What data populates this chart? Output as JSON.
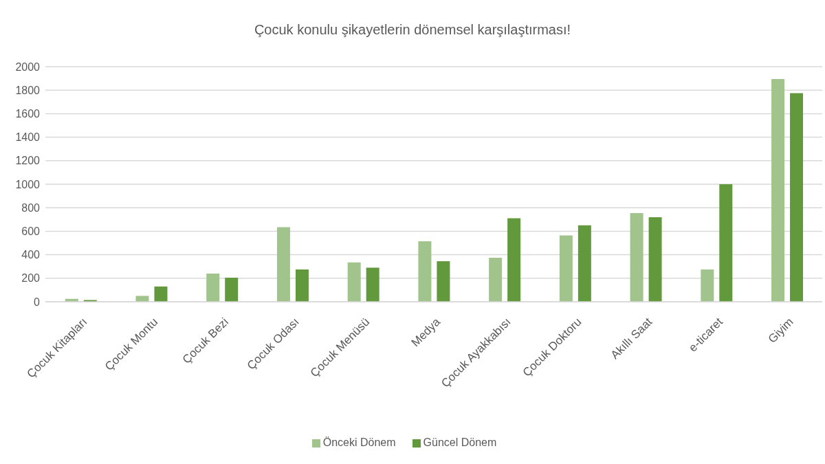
{
  "chart_data": {
    "type": "bar",
    "title": "Çocuk konulu şikayetlerin dönemsel karşılaştırması!",
    "categories": [
      "Çocuk Kitapları",
      "Çocuk Montu",
      "Çocuk Bezi",
      "Çocuk Odası",
      "Çocuk Menüsü",
      "Medya",
      "Çocuk Ayakkabısı",
      "Çocuk Doktoru",
      "Akıllı Saat",
      "e-ticaret",
      "Giyim"
    ],
    "series": [
      {
        "name": "Önceki Dönem",
        "color": "#a0c48c",
        "values": [
          25,
          50,
          240,
          635,
          335,
          515,
          375,
          565,
          755,
          275,
          1895
        ]
      },
      {
        "name": "Güncel Dönem",
        "color": "#62993c",
        "values": [
          15,
          130,
          205,
          275,
          290,
          345,
          710,
          650,
          720,
          1000,
          1775
        ]
      }
    ],
    "ylim": [
      0,
      2000
    ],
    "yticks": [
      0,
      200,
      400,
      600,
      800,
      1000,
      1200,
      1400,
      1600,
      1800,
      2000
    ],
    "grid": "y",
    "legend": "bottom"
  }
}
